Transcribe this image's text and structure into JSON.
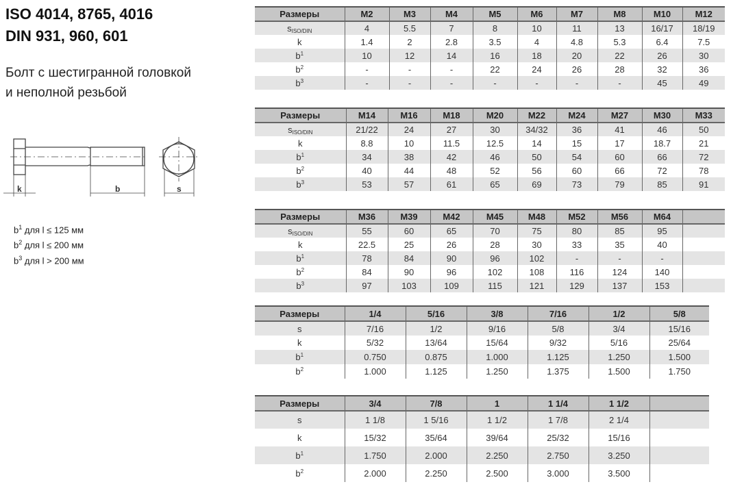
{
  "header": {
    "title_line1": "ISO 4014, 8765, 4016",
    "title_line2": "DIN 931, 960, 601",
    "subtitle_line1": "Болт с шестигранной головкой",
    "subtitle_line2": "и неполной резьбой"
  },
  "drawing": {
    "labels": {
      "k": "k",
      "b": "b",
      "s": "s"
    }
  },
  "notes": [
    {
      "sym": "b",
      "sup": "1",
      "text": " для l ≤ 125 мм"
    },
    {
      "sym": "b",
      "sup": "2",
      "text": " для l ≤ 200 мм"
    },
    {
      "sym": "b",
      "sup": "3",
      "text": " для l > 200 мм"
    }
  ],
  "tables": [
    {
      "header_label": "Размеры",
      "columns": [
        "M2",
        "M3",
        "M4",
        "M5",
        "M6",
        "M7",
        "M8",
        "M10",
        "M12"
      ],
      "rows": [
        {
          "label": "s",
          "sub": "ISO/DIN",
          "sup": "",
          "values": [
            "4",
            "5.5",
            "7",
            "8",
            "10",
            "11",
            "13",
            "16/17",
            "18/19"
          ]
        },
        {
          "label": "k",
          "sub": "",
          "sup": "",
          "values": [
            "1.4",
            "2",
            "2.8",
            "3.5",
            "4",
            "4.8",
            "5.3",
            "6.4",
            "7.5"
          ]
        },
        {
          "label": "b",
          "sub": "",
          "sup": "1",
          "values": [
            "10",
            "12",
            "14",
            "16",
            "18",
            "20",
            "22",
            "26",
            "30"
          ]
        },
        {
          "label": "b",
          "sub": "",
          "sup": "2",
          "values": [
            "-",
            "-",
            "-",
            "22",
            "24",
            "26",
            "28",
            "32",
            "36"
          ]
        },
        {
          "label": "b",
          "sub": "",
          "sup": "3",
          "values": [
            "-",
            "-",
            "-",
            "-",
            "-",
            "-",
            "-",
            "45",
            "49"
          ]
        }
      ]
    },
    {
      "header_label": "Размеры",
      "columns": [
        "M14",
        "M16",
        "M18",
        "M20",
        "M22",
        "M24",
        "M27",
        "M30",
        "M33"
      ],
      "rows": [
        {
          "label": "s",
          "sub": "ISO/DIN",
          "sup": "",
          "values": [
            "21/22",
            "24",
            "27",
            "30",
            "34/32",
            "36",
            "41",
            "46",
            "50"
          ]
        },
        {
          "label": "k",
          "sub": "",
          "sup": "",
          "values": [
            "8.8",
            "10",
            "11.5",
            "12.5",
            "14",
            "15",
            "17",
            "18.7",
            "21"
          ]
        },
        {
          "label": "b",
          "sub": "",
          "sup": "1",
          "values": [
            "34",
            "38",
            "42",
            "46",
            "50",
            "54",
            "60",
            "66",
            "72"
          ]
        },
        {
          "label": "b",
          "sub": "",
          "sup": "2",
          "values": [
            "40",
            "44",
            "48",
            "52",
            "56",
            "60",
            "66",
            "72",
            "78"
          ]
        },
        {
          "label": "b",
          "sub": "",
          "sup": "3",
          "values": [
            "53",
            "57",
            "61",
            "65",
            "69",
            "73",
            "79",
            "85",
            "91"
          ]
        }
      ]
    },
    {
      "header_label": "Размеры",
      "columns": [
        "M36",
        "M39",
        "M42",
        "M45",
        "M48",
        "M52",
        "M56",
        "M64",
        ""
      ],
      "rows": [
        {
          "label": "s",
          "sub": "ISO/DIN",
          "sup": "",
          "values": [
            "55",
            "60",
            "65",
            "70",
            "75",
            "80",
            "85",
            "95",
            ""
          ]
        },
        {
          "label": "k",
          "sub": "",
          "sup": "",
          "values": [
            "22.5",
            "25",
            "26",
            "28",
            "30",
            "33",
            "35",
            "40",
            ""
          ]
        },
        {
          "label": "b",
          "sub": "",
          "sup": "1",
          "values": [
            "78",
            "84",
            "90",
            "96",
            "102",
            "-",
            "-",
            "-",
            ""
          ]
        },
        {
          "label": "b",
          "sub": "",
          "sup": "2",
          "values": [
            "84",
            "90",
            "96",
            "102",
            "108",
            "116",
            "124",
            "140",
            ""
          ]
        },
        {
          "label": "b",
          "sub": "",
          "sup": "3",
          "values": [
            "97",
            "103",
            "109",
            "115",
            "121",
            "129",
            "137",
            "153",
            ""
          ]
        }
      ]
    },
    {
      "header_label": "Размеры",
      "columns": [
        "1/4",
        "5/16",
        "3/8",
        "7/16",
        "1/2",
        "5/8"
      ],
      "rows": [
        {
          "label": "s",
          "sub": "",
          "sup": "",
          "values": [
            "7/16",
            "1/2",
            "9/16",
            "5/8",
            "3/4",
            "15/16"
          ]
        },
        {
          "label": "k",
          "sub": "",
          "sup": "",
          "values": [
            "5/32",
            "13/64",
            "15/64",
            "9/32",
            "5/16",
            "25/64"
          ]
        },
        {
          "label": "b",
          "sub": "",
          "sup": "1",
          "values": [
            "0.750",
            "0.875",
            "1.000",
            "1.125",
            "1.250",
            "1.500"
          ]
        },
        {
          "label": "b",
          "sub": "",
          "sup": "2",
          "values": [
            "1.000",
            "1.125",
            "1.250",
            "1.375",
            "1.500",
            "1.750"
          ]
        }
      ]
    },
    {
      "header_label": "Размеры",
      "columns": [
        "3/4",
        "7/8",
        "1",
        "1 1/4",
        "1 1/2",
        ""
      ],
      "rows": [
        {
          "label": "s",
          "sub": "",
          "sup": "",
          "values": [
            "1 1/8",
            "1 5/16",
            "1 1/2",
            "1 7/8",
            "2 1/4",
            ""
          ]
        },
        {
          "label": "k",
          "sub": "",
          "sup": "",
          "values": [
            "15/32",
            "35/64",
            "39/64",
            "25/32",
            "15/16",
            ""
          ]
        },
        {
          "label": "b",
          "sub": "",
          "sup": "1",
          "values": [
            "1.750",
            "2.000",
            "2.250",
            "2.750",
            "3.250",
            ""
          ]
        },
        {
          "label": "b",
          "sub": "",
          "sup": "2",
          "values": [
            "2.000",
            "2.250",
            "2.500",
            "3.000",
            "3.500",
            ""
          ]
        }
      ]
    }
  ]
}
